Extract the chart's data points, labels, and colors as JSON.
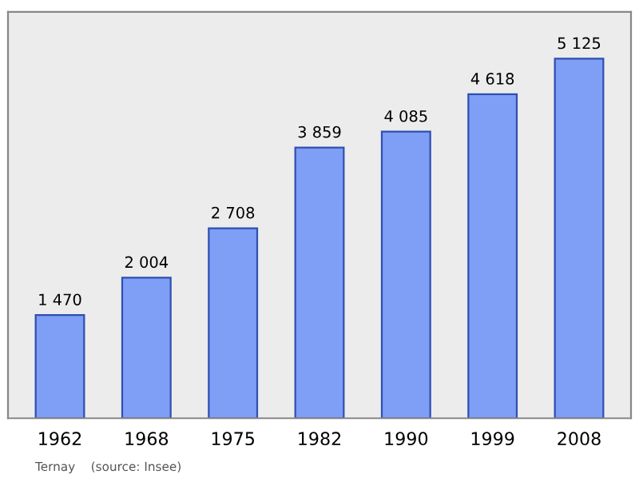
{
  "chart_data": {
    "type": "bar",
    "categories": [
      "1962",
      "1968",
      "1975",
      "1982",
      "1990",
      "1999",
      "2008"
    ],
    "values": [
      1470,
      2004,
      2708,
      3859,
      4085,
      4618,
      5125
    ],
    "value_labels": [
      "1 470",
      "2 004",
      "2 708",
      "3 859",
      "4 085",
      "4 618",
      "5 125"
    ],
    "color": "#7f9ef5",
    "annotations": [
      "Ternay    (source: Insee)"
    ],
    "grid": false,
    "legend": false
  }
}
